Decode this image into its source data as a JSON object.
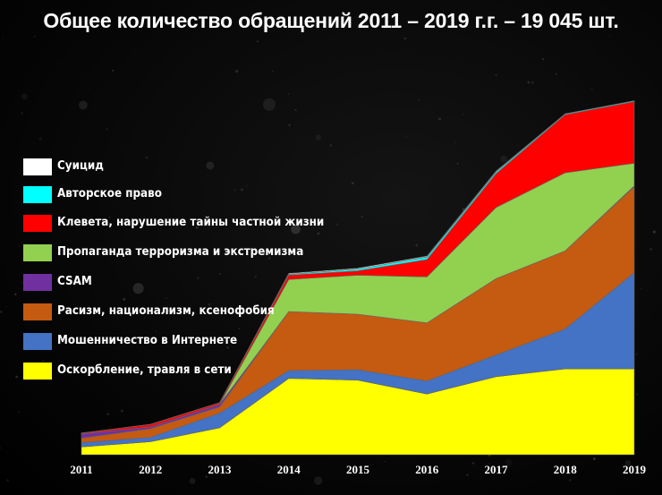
{
  "title": "Общее количество обращений 2011 – 2019 г.г. – 19 045 шт.",
  "chart_data": {
    "type": "area",
    "stacked": true,
    "title": "Общее количество обращений 2011 – 2019 г.г. – 19 045 шт.",
    "xlabel": "",
    "ylabel": "",
    "categories": [
      "2011",
      "2012",
      "2013",
      "2014",
      "2015",
      "2016",
      "2017",
      "2018",
      "2019"
    ],
    "ylim": [
      0,
      4210
    ],
    "grid": false,
    "legend_position": "left",
    "values_note_unit": "",
    "series": [
      {
        "name": "Оскорбление, травля в сети",
        "color": "#FFFF00",
        "values": [
          90,
          150,
          310,
          880,
          860,
          700,
          900,
          990,
          990
        ]
      },
      {
        "name": "Мошенничество в Интернете",
        "color": "#4472C4",
        "values": [
          50,
          50,
          170,
          90,
          120,
          150,
          250,
          460,
          1110
        ]
      },
      {
        "name": "Расизм, национализм, ксенофобия",
        "color": "#C55A11",
        "values": [
          50,
          100,
          70,
          680,
          640,
          670,
          880,
          900,
          990
        ]
      },
      {
        "name": "CSAM",
        "color": "#7030A0",
        "values": [
          50,
          20,
          30,
          0,
          0,
          0,
          0,
          0,
          10
        ]
      },
      {
        "name": "Пропаганда терроризма и экстремизма",
        "color": "#92D050",
        "values": [
          0,
          0,
          0,
          370,
          450,
          530,
          820,
          900,
          260
        ]
      },
      {
        "name": "Клевета, нарушение тайны частной жизни",
        "color": "#FF0000",
        "values": [
          10,
          30,
          20,
          50,
          50,
          200,
          390,
          670,
          710
        ]
      },
      {
        "name": "Авторское право",
        "color": "#00FFFF",
        "values": [
          0,
          0,
          0,
          10,
          20,
          30,
          20,
          10,
          10
        ]
      },
      {
        "name": "Суицид",
        "color": "#FFFFFF",
        "values": [
          0,
          0,
          0,
          10,
          10,
          10,
          10,
          0,
          0
        ]
      }
    ]
  }
}
